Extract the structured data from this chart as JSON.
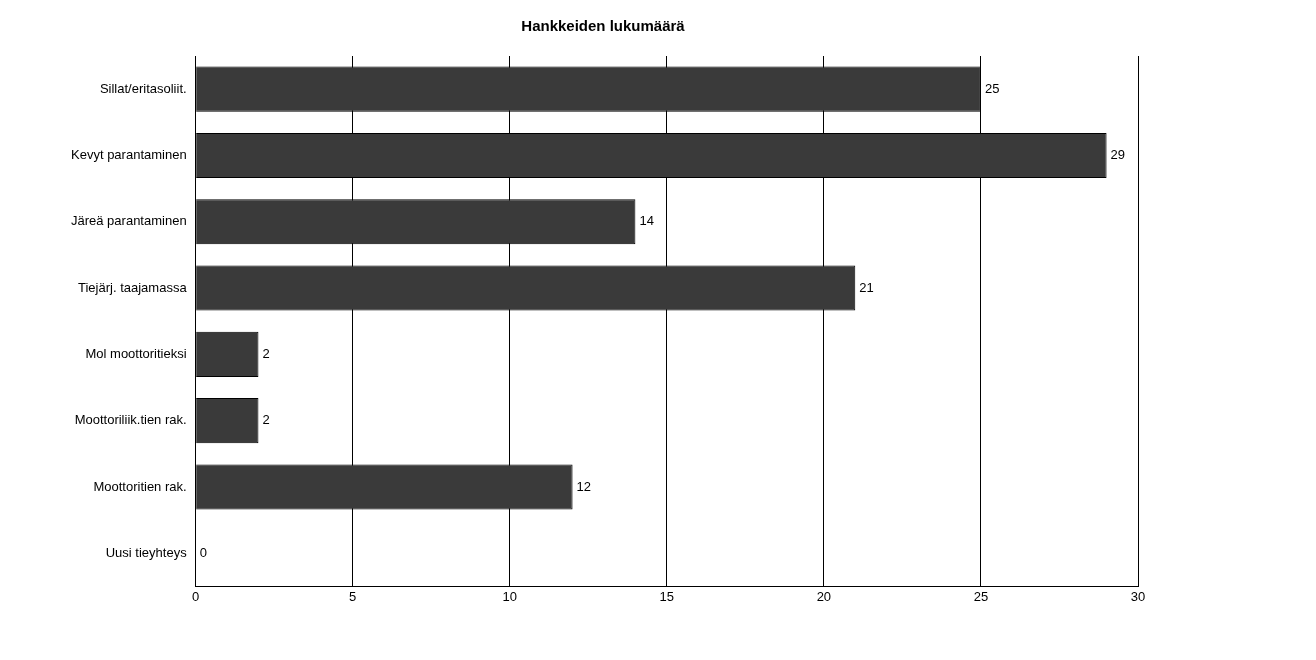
{
  "chart_data": {
    "type": "bar",
    "orientation": "horizontal",
    "title": "Hankkeiden lukumäärä",
    "categories": [
      "Sillat/eritasoliit.",
      "Kevyt parantaminen",
      "Järeä parantaminen",
      "Tiejärj. taajamassa",
      "Mol moottoritieksi",
      "Moottoriliik.tien rak.",
      "Moottoritien rak.",
      "Uusi tieyhteys"
    ],
    "values": [
      25,
      29,
      14,
      21,
      2,
      2,
      12,
      0
    ],
    "color": "#3a3a3a",
    "xlim": [
      0,
      30
    ],
    "xticks": [
      0,
      5,
      10,
      15,
      20,
      25,
      30
    ],
    "grid": "x",
    "data_labels": true,
    "legend": false
  }
}
